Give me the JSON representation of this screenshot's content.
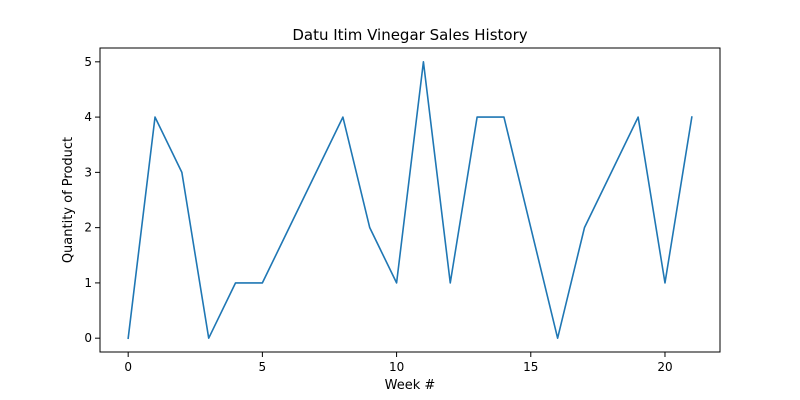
{
  "chart_data": {
    "type": "line",
    "title": "Datu Itim Vinegar Sales History",
    "xlabel": "Week #",
    "ylabel": "Quantity of Product",
    "x": [
      0,
      1,
      2,
      3,
      4,
      5,
      6,
      7,
      8,
      9,
      10,
      11,
      12,
      13,
      14,
      15,
      16,
      17,
      18,
      19,
      20,
      21
    ],
    "series": [
      {
        "values": [
          0,
          4,
          3,
          0,
          1,
          1,
          2,
          3,
          4,
          2,
          1,
          5,
          1,
          4,
          4,
          2,
          0,
          2,
          3,
          4,
          1,
          4
        ],
        "color": "#1f77b4"
      }
    ],
    "xlim": [
      -1.05,
      22.05
    ],
    "ylim": [
      -0.25,
      5.25
    ],
    "xticks": [
      0,
      5,
      10,
      15,
      20
    ],
    "yticks": [
      0,
      1,
      2,
      3,
      4,
      5
    ],
    "grid": false,
    "legend": "none"
  }
}
